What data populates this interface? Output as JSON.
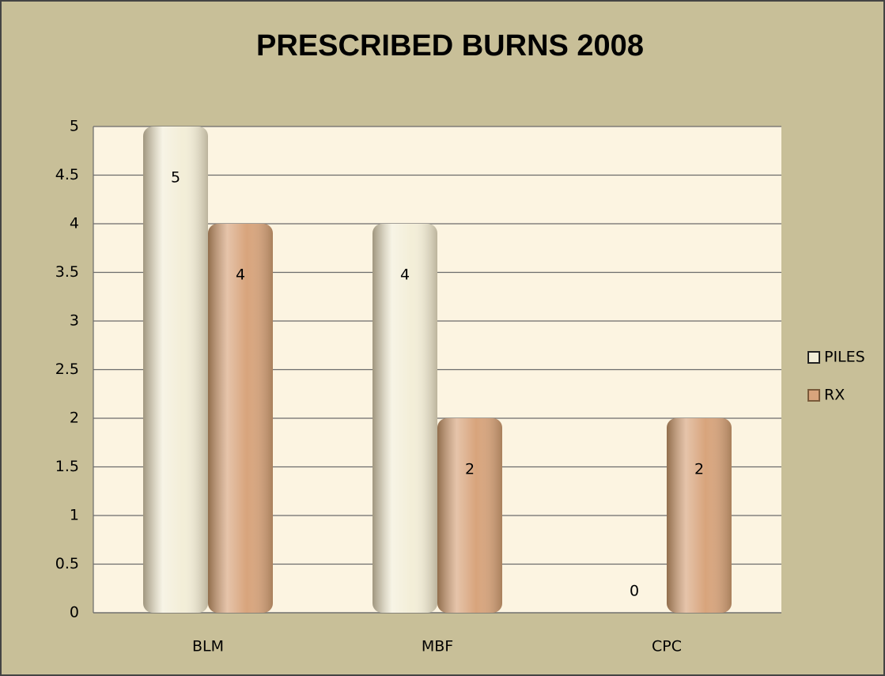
{
  "chart_data": {
    "type": "bar",
    "title": "PRESCRIBED BURNS 2008",
    "categories": [
      "BLM",
      "MBF",
      "CPC"
    ],
    "series": [
      {
        "name": "PILES",
        "color": "#f3eed8",
        "values": [
          5,
          4,
          0
        ]
      },
      {
        "name": "RX",
        "color": "#d8a47c",
        "values": [
          4,
          2,
          2
        ]
      }
    ],
    "ylim": [
      0,
      5
    ],
    "yticks": [
      0,
      0.5,
      1,
      1.5,
      2,
      2.5,
      3,
      3.5,
      4,
      4.5,
      5
    ],
    "grid": true,
    "legend": "right"
  }
}
